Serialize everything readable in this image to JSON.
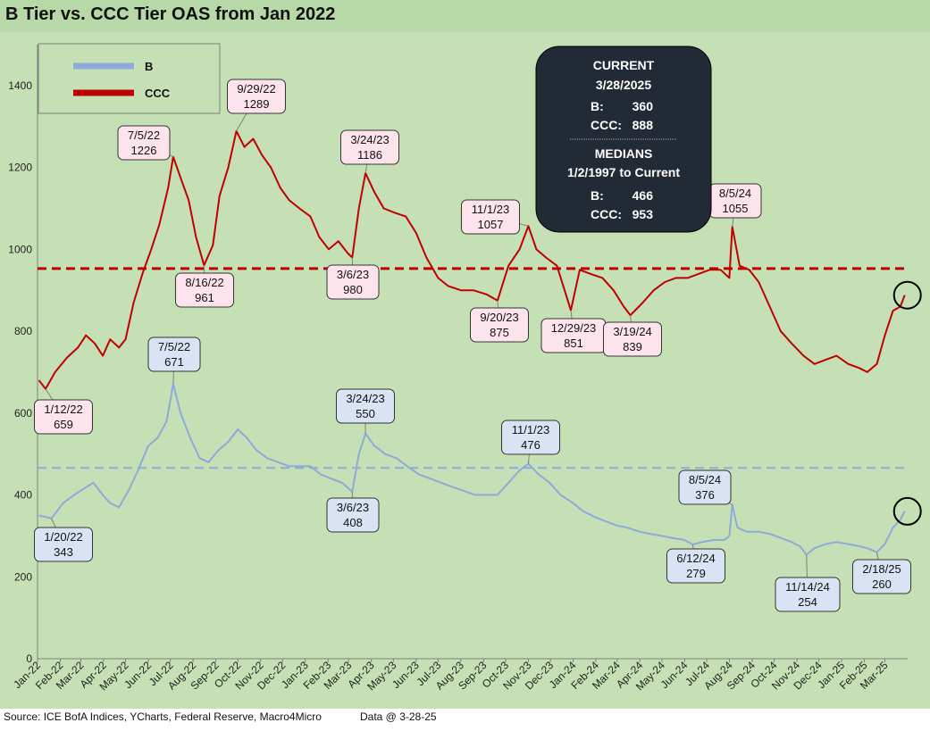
{
  "title": "B Tier vs. CCC Tier OAS from Jan 2022",
  "footer": {
    "source": "Source: ICE BofA Indices, YCharts, Federal Reserve, Macro4Micro",
    "data_date": "Data @ 3-28-25"
  },
  "legend": {
    "b_label": "B",
    "ccc_label": "CCC"
  },
  "info_box": {
    "current_heading": "CURRENT",
    "current_date": "3/28/2025",
    "b_label": "B:",
    "b_value": "360",
    "ccc_label": "CCC:",
    "ccc_value": "888",
    "medians_heading": "MEDIANS",
    "medians_range": "1/2/1997 to Current",
    "median_b_label": "B:",
    "median_b_value": "466",
    "median_ccc_label": "CCC:",
    "median_ccc_value": "953"
  },
  "colors": {
    "b": "#8eaadb",
    "ccc": "#c00000",
    "background": "#c5e0b4",
    "callout_b": "#dae3f3",
    "callout_ccc": "#fde4ec",
    "info_box": "#222a35"
  },
  "chart_data": {
    "type": "line",
    "title": "B Tier vs. CCC Tier OAS from Jan 2022",
    "ylim": [
      0,
      1500
    ],
    "yticks": [
      0,
      200,
      400,
      600,
      800,
      1000,
      1200,
      1400
    ],
    "grid": false,
    "legend_position": "top-left",
    "categories": [
      "Jan-22",
      "Feb-22",
      "Mar-22",
      "Apr-22",
      "May-22",
      "Jun-22",
      "Jul-22",
      "Aug-22",
      "Sep-22",
      "Oct-22",
      "Nov-22",
      "Dec-22",
      "Jan-23",
      "Feb-23",
      "Mar-23",
      "Apr-23",
      "May-23",
      "Jun-23",
      "Jul-23",
      "Aug-23",
      "Sep-23",
      "Oct-23",
      "Nov-23",
      "Dec-23",
      "Jan-24",
      "Feb-24",
      "Mar-24",
      "Apr-24",
      "May-24",
      "Jun-24",
      "Jul-24",
      "Aug-24",
      "Sep-24",
      "Oct-24",
      "Nov-24",
      "Dec-24",
      "Jan-25",
      "Feb-25",
      "Mar-25"
    ],
    "reference_lines": [
      {
        "series": "CCC",
        "value": 953
      },
      {
        "series": "B",
        "value": 466
      }
    ],
    "series": [
      {
        "name": "CCC",
        "points": [
          [
            "2022-01-03",
            680
          ],
          [
            "2022-01-12",
            659
          ],
          [
            "2022-01-25",
            700
          ],
          [
            "2022-02-10",
            735
          ],
          [
            "2022-02-25",
            760
          ],
          [
            "2022-03-08",
            790
          ],
          [
            "2022-03-20",
            770
          ],
          [
            "2022-03-31",
            740
          ],
          [
            "2022-04-10",
            780
          ],
          [
            "2022-04-22",
            760
          ],
          [
            "2022-05-01",
            780
          ],
          [
            "2022-05-12",
            870
          ],
          [
            "2022-05-24",
            940
          ],
          [
            "2022-06-05",
            1000
          ],
          [
            "2022-06-16",
            1060
          ],
          [
            "2022-06-28",
            1150
          ],
          [
            "2022-07-05",
            1226
          ],
          [
            "2022-07-14",
            1180
          ],
          [
            "2022-07-26",
            1120
          ],
          [
            "2022-08-05",
            1030
          ],
          [
            "2022-08-16",
            961
          ],
          [
            "2022-08-28",
            1010
          ],
          [
            "2022-09-06",
            1130
          ],
          [
            "2022-09-18",
            1200
          ],
          [
            "2022-09-29",
            1289
          ],
          [
            "2022-10-10",
            1250
          ],
          [
            "2022-10-22",
            1270
          ],
          [
            "2022-11-03",
            1230
          ],
          [
            "2022-11-15",
            1200
          ],
          [
            "2022-11-28",
            1150
          ],
          [
            "2022-12-10",
            1120
          ],
          [
            "2022-12-24",
            1100
          ],
          [
            "2023-01-08",
            1080
          ],
          [
            "2023-01-20",
            1030
          ],
          [
            "2023-02-02",
            1000
          ],
          [
            "2023-02-15",
            1020
          ],
          [
            "2023-02-28",
            990
          ],
          [
            "2023-03-06",
            980
          ],
          [
            "2023-03-15",
            1100
          ],
          [
            "2023-03-24",
            1186
          ],
          [
            "2023-04-05",
            1140
          ],
          [
            "2023-04-18",
            1100
          ],
          [
            "2023-05-02",
            1090
          ],
          [
            "2023-05-18",
            1080
          ],
          [
            "2023-06-01",
            1040
          ],
          [
            "2023-06-15",
            980
          ],
          [
            "2023-07-01",
            930
          ],
          [
            "2023-07-15",
            910
          ],
          [
            "2023-08-01",
            900
          ],
          [
            "2023-08-18",
            900
          ],
          [
            "2023-09-05",
            890
          ],
          [
            "2023-09-20",
            875
          ],
          [
            "2023-10-05",
            960
          ],
          [
            "2023-10-20",
            1000
          ],
          [
            "2023-11-01",
            1057
          ],
          [
            "2023-11-12",
            1000
          ],
          [
            "2023-11-25",
            980
          ],
          [
            "2023-12-10",
            960
          ],
          [
            "2023-12-29",
            851
          ],
          [
            "2024-01-10",
            950
          ],
          [
            "2024-01-25",
            940
          ],
          [
            "2024-02-10",
            930
          ],
          [
            "2024-02-25",
            900
          ],
          [
            "2024-03-10",
            860
          ],
          [
            "2024-03-19",
            839
          ],
          [
            "2024-04-05",
            870
          ],
          [
            "2024-04-20",
            900
          ],
          [
            "2024-05-05",
            920
          ],
          [
            "2024-05-20",
            930
          ],
          [
            "2024-06-05",
            930
          ],
          [
            "2024-06-20",
            940
          ],
          [
            "2024-07-05",
            950
          ],
          [
            "2024-07-20",
            950
          ],
          [
            "2024-08-01",
            930
          ],
          [
            "2024-08-05",
            1055
          ],
          [
            "2024-08-15",
            960
          ],
          [
            "2024-08-28",
            950
          ],
          [
            "2024-09-10",
            920
          ],
          [
            "2024-09-25",
            860
          ],
          [
            "2024-10-10",
            800
          ],
          [
            "2024-10-25",
            770
          ],
          [
            "2024-11-10",
            740
          ],
          [
            "2024-11-25",
            720
          ],
          [
            "2024-12-10",
            730
          ],
          [
            "2024-12-25",
            740
          ],
          [
            "2025-01-10",
            720
          ],
          [
            "2025-01-25",
            710
          ],
          [
            "2025-02-05",
            700
          ],
          [
            "2025-02-18",
            720
          ],
          [
            "2025-03-01",
            790
          ],
          [
            "2025-03-12",
            850
          ],
          [
            "2025-03-22",
            860
          ],
          [
            "2025-03-28",
            888
          ]
        ]
      },
      {
        "name": "B",
        "points": [
          [
            "2022-01-03",
            350
          ],
          [
            "2022-01-20",
            343
          ],
          [
            "2022-02-05",
            380
          ],
          [
            "2022-02-20",
            400
          ],
          [
            "2022-03-05",
            415
          ],
          [
            "2022-03-18",
            430
          ],
          [
            "2022-03-31",
            400
          ],
          [
            "2022-04-10",
            380
          ],
          [
            "2022-04-22",
            370
          ],
          [
            "2022-05-05",
            410
          ],
          [
            "2022-05-18",
            460
          ],
          [
            "2022-06-01",
            520
          ],
          [
            "2022-06-14",
            540
          ],
          [
            "2022-06-26",
            580
          ],
          [
            "2022-07-05",
            671
          ],
          [
            "2022-07-15",
            600
          ],
          [
            "2022-07-28",
            540
          ],
          [
            "2022-08-10",
            490
          ],
          [
            "2022-08-22",
            480
          ],
          [
            "2022-09-05",
            510
          ],
          [
            "2022-09-18",
            530
          ],
          [
            "2022-10-01",
            560
          ],
          [
            "2022-10-13",
            540
          ],
          [
            "2022-10-26",
            510
          ],
          [
            "2022-11-10",
            490
          ],
          [
            "2022-11-25",
            480
          ],
          [
            "2022-12-10",
            470
          ],
          [
            "2022-12-25",
            470
          ],
          [
            "2023-01-08",
            470
          ],
          [
            "2023-01-22",
            450
          ],
          [
            "2023-02-05",
            440
          ],
          [
            "2023-02-20",
            430
          ],
          [
            "2023-03-06",
            408
          ],
          [
            "2023-03-15",
            500
          ],
          [
            "2023-03-24",
            550
          ],
          [
            "2023-04-05",
            520
          ],
          [
            "2023-04-20",
            500
          ],
          [
            "2023-05-05",
            490
          ],
          [
            "2023-05-20",
            470
          ],
          [
            "2023-06-05",
            450
          ],
          [
            "2023-06-20",
            440
          ],
          [
            "2023-07-05",
            430
          ],
          [
            "2023-07-20",
            420
          ],
          [
            "2023-08-05",
            410
          ],
          [
            "2023-08-20",
            400
          ],
          [
            "2023-09-05",
            400
          ],
          [
            "2023-09-20",
            400
          ],
          [
            "2023-10-05",
            430
          ],
          [
            "2023-10-20",
            460
          ],
          [
            "2023-11-01",
            476
          ],
          [
            "2023-11-15",
            450
          ],
          [
            "2023-11-30",
            430
          ],
          [
            "2023-12-15",
            400
          ],
          [
            "2024-01-01",
            380
          ],
          [
            "2024-01-15",
            360
          ],
          [
            "2024-02-01",
            345
          ],
          [
            "2024-02-15",
            335
          ],
          [
            "2024-03-01",
            325
          ],
          [
            "2024-03-15",
            320
          ],
          [
            "2024-04-01",
            310
          ],
          [
            "2024-04-15",
            305
          ],
          [
            "2024-05-01",
            300
          ],
          [
            "2024-05-15",
            295
          ],
          [
            "2024-06-01",
            290
          ],
          [
            "2024-06-12",
            279
          ],
          [
            "2024-06-25",
            285
          ],
          [
            "2024-07-10",
            290
          ],
          [
            "2024-07-25",
            290
          ],
          [
            "2024-08-01",
            300
          ],
          [
            "2024-08-05",
            376
          ],
          [
            "2024-08-12",
            320
          ],
          [
            "2024-08-25",
            310
          ],
          [
            "2024-09-10",
            310
          ],
          [
            "2024-09-25",
            305
          ],
          [
            "2024-10-10",
            295
          ],
          [
            "2024-10-25",
            285
          ],
          [
            "2024-11-05",
            275
          ],
          [
            "2024-11-14",
            254
          ],
          [
            "2024-11-25",
            270
          ],
          [
            "2024-12-10",
            280
          ],
          [
            "2024-12-25",
            285
          ],
          [
            "2025-01-10",
            280
          ],
          [
            "2025-01-25",
            275
          ],
          [
            "2025-02-05",
            270
          ],
          [
            "2025-02-18",
            260
          ],
          [
            "2025-03-01",
            280
          ],
          [
            "2025-03-12",
            320
          ],
          [
            "2025-03-22",
            340
          ],
          [
            "2025-03-28",
            360
          ]
        ]
      }
    ],
    "annotations": [
      {
        "series": "CCC",
        "date": "7/5/22",
        "value": "1226"
      },
      {
        "series": "CCC",
        "date": "9/29/22",
        "value": "1289"
      },
      {
        "series": "CCC",
        "date": "3/24/23",
        "value": "1186"
      },
      {
        "series": "CCC",
        "date": "11/1/23",
        "value": "1057"
      },
      {
        "series": "CCC",
        "date": "8/5/24",
        "value": "1055"
      },
      {
        "series": "CCC",
        "date": "8/16/22",
        "value": "961"
      },
      {
        "series": "CCC",
        "date": "3/6/23",
        "value": "980"
      },
      {
        "series": "CCC",
        "date": "9/20/23",
        "value": "875"
      },
      {
        "series": "CCC",
        "date": "12/29/23",
        "value": "851"
      },
      {
        "series": "CCC",
        "date": "3/19/24",
        "value": "839"
      },
      {
        "series": "CCC",
        "date": "1/12/22",
        "value": "659"
      },
      {
        "series": "B",
        "date": "7/5/22",
        "value": "671"
      },
      {
        "series": "B",
        "date": "3/24/23",
        "value": "550"
      },
      {
        "series": "B",
        "date": "11/1/23",
        "value": "476"
      },
      {
        "series": "B",
        "date": "8/5/24",
        "value": "376"
      },
      {
        "series": "B",
        "date": "1/20/22",
        "value": "343"
      },
      {
        "series": "B",
        "date": "3/6/23",
        "value": "408"
      },
      {
        "series": "B",
        "date": "6/12/24",
        "value": "279"
      },
      {
        "series": "B",
        "date": "11/14/24",
        "value": "254"
      },
      {
        "series": "B",
        "date": "2/18/25",
        "value": "260"
      }
    ]
  }
}
